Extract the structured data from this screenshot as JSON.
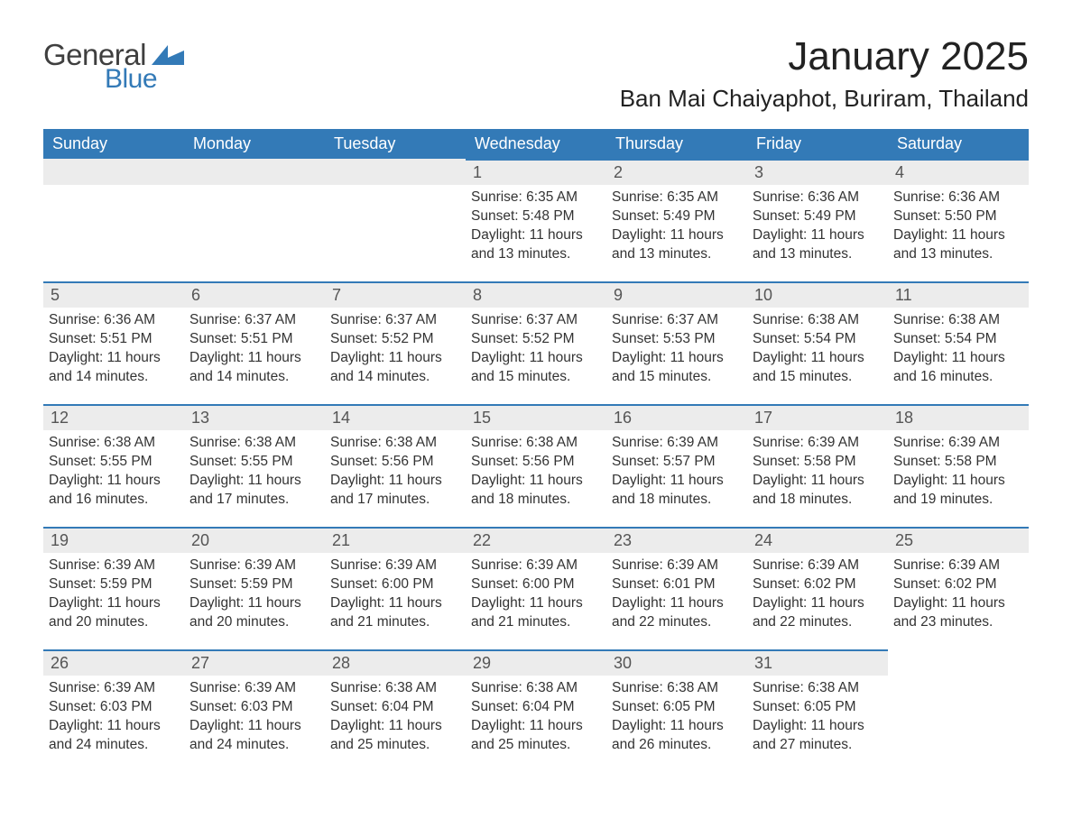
{
  "logo": {
    "text_a": "General",
    "text_b": "Blue",
    "flag_color": "#337ab7"
  },
  "title": "January 2025",
  "subtitle": "Ban Mai Chaiyaphot, Buriram, Thailand",
  "colors": {
    "header_bg": "#337ab7",
    "header_fg": "#ffffff",
    "daynum_bg": "#ececec",
    "row_border": "#337ab7",
    "text": "#333333"
  },
  "legend_days": [
    "Sunday",
    "Monday",
    "Tuesday",
    "Wednesday",
    "Thursday",
    "Friday",
    "Saturday"
  ],
  "weeks": [
    [
      null,
      null,
      null,
      {
        "n": "1",
        "sr": "Sunrise: 6:35 AM",
        "ss": "Sunset: 5:48 PM",
        "dl": "Daylight: 11 hours and 13 minutes."
      },
      {
        "n": "2",
        "sr": "Sunrise: 6:35 AM",
        "ss": "Sunset: 5:49 PM",
        "dl": "Daylight: 11 hours and 13 minutes."
      },
      {
        "n": "3",
        "sr": "Sunrise: 6:36 AM",
        "ss": "Sunset: 5:49 PM",
        "dl": "Daylight: 11 hours and 13 minutes."
      },
      {
        "n": "4",
        "sr": "Sunrise: 6:36 AM",
        "ss": "Sunset: 5:50 PM",
        "dl": "Daylight: 11 hours and 13 minutes."
      }
    ],
    [
      {
        "n": "5",
        "sr": "Sunrise: 6:36 AM",
        "ss": "Sunset: 5:51 PM",
        "dl": "Daylight: 11 hours and 14 minutes."
      },
      {
        "n": "6",
        "sr": "Sunrise: 6:37 AM",
        "ss": "Sunset: 5:51 PM",
        "dl": "Daylight: 11 hours and 14 minutes."
      },
      {
        "n": "7",
        "sr": "Sunrise: 6:37 AM",
        "ss": "Sunset: 5:52 PM",
        "dl": "Daylight: 11 hours and 14 minutes."
      },
      {
        "n": "8",
        "sr": "Sunrise: 6:37 AM",
        "ss": "Sunset: 5:52 PM",
        "dl": "Daylight: 11 hours and 15 minutes."
      },
      {
        "n": "9",
        "sr": "Sunrise: 6:37 AM",
        "ss": "Sunset: 5:53 PM",
        "dl": "Daylight: 11 hours and 15 minutes."
      },
      {
        "n": "10",
        "sr": "Sunrise: 6:38 AM",
        "ss": "Sunset: 5:54 PM",
        "dl": "Daylight: 11 hours and 15 minutes."
      },
      {
        "n": "11",
        "sr": "Sunrise: 6:38 AM",
        "ss": "Sunset: 5:54 PM",
        "dl": "Daylight: 11 hours and 16 minutes."
      }
    ],
    [
      {
        "n": "12",
        "sr": "Sunrise: 6:38 AM",
        "ss": "Sunset: 5:55 PM",
        "dl": "Daylight: 11 hours and 16 minutes."
      },
      {
        "n": "13",
        "sr": "Sunrise: 6:38 AM",
        "ss": "Sunset: 5:55 PM",
        "dl": "Daylight: 11 hours and 17 minutes."
      },
      {
        "n": "14",
        "sr": "Sunrise: 6:38 AM",
        "ss": "Sunset: 5:56 PM",
        "dl": "Daylight: 11 hours and 17 minutes."
      },
      {
        "n": "15",
        "sr": "Sunrise: 6:38 AM",
        "ss": "Sunset: 5:56 PM",
        "dl": "Daylight: 11 hours and 18 minutes."
      },
      {
        "n": "16",
        "sr": "Sunrise: 6:39 AM",
        "ss": "Sunset: 5:57 PM",
        "dl": "Daylight: 11 hours and 18 minutes."
      },
      {
        "n": "17",
        "sr": "Sunrise: 6:39 AM",
        "ss": "Sunset: 5:58 PM",
        "dl": "Daylight: 11 hours and 18 minutes."
      },
      {
        "n": "18",
        "sr": "Sunrise: 6:39 AM",
        "ss": "Sunset: 5:58 PM",
        "dl": "Daylight: 11 hours and 19 minutes."
      }
    ],
    [
      {
        "n": "19",
        "sr": "Sunrise: 6:39 AM",
        "ss": "Sunset: 5:59 PM",
        "dl": "Daylight: 11 hours and 20 minutes."
      },
      {
        "n": "20",
        "sr": "Sunrise: 6:39 AM",
        "ss": "Sunset: 5:59 PM",
        "dl": "Daylight: 11 hours and 20 minutes."
      },
      {
        "n": "21",
        "sr": "Sunrise: 6:39 AM",
        "ss": "Sunset: 6:00 PM",
        "dl": "Daylight: 11 hours and 21 minutes."
      },
      {
        "n": "22",
        "sr": "Sunrise: 6:39 AM",
        "ss": "Sunset: 6:00 PM",
        "dl": "Daylight: 11 hours and 21 minutes."
      },
      {
        "n": "23",
        "sr": "Sunrise: 6:39 AM",
        "ss": "Sunset: 6:01 PM",
        "dl": "Daylight: 11 hours and 22 minutes."
      },
      {
        "n": "24",
        "sr": "Sunrise: 6:39 AM",
        "ss": "Sunset: 6:02 PM",
        "dl": "Daylight: 11 hours and 22 minutes."
      },
      {
        "n": "25",
        "sr": "Sunrise: 6:39 AM",
        "ss": "Sunset: 6:02 PM",
        "dl": "Daylight: 11 hours and 23 minutes."
      }
    ],
    [
      {
        "n": "26",
        "sr": "Sunrise: 6:39 AM",
        "ss": "Sunset: 6:03 PM",
        "dl": "Daylight: 11 hours and 24 minutes."
      },
      {
        "n": "27",
        "sr": "Sunrise: 6:39 AM",
        "ss": "Sunset: 6:03 PM",
        "dl": "Daylight: 11 hours and 24 minutes."
      },
      {
        "n": "28",
        "sr": "Sunrise: 6:38 AM",
        "ss": "Sunset: 6:04 PM",
        "dl": "Daylight: 11 hours and 25 minutes."
      },
      {
        "n": "29",
        "sr": "Sunrise: 6:38 AM",
        "ss": "Sunset: 6:04 PM",
        "dl": "Daylight: 11 hours and 25 minutes."
      },
      {
        "n": "30",
        "sr": "Sunrise: 6:38 AM",
        "ss": "Sunset: 6:05 PM",
        "dl": "Daylight: 11 hours and 26 minutes."
      },
      {
        "n": "31",
        "sr": "Sunrise: 6:38 AM",
        "ss": "Sunset: 6:05 PM",
        "dl": "Daylight: 11 hours and 27 minutes."
      },
      null
    ]
  ]
}
